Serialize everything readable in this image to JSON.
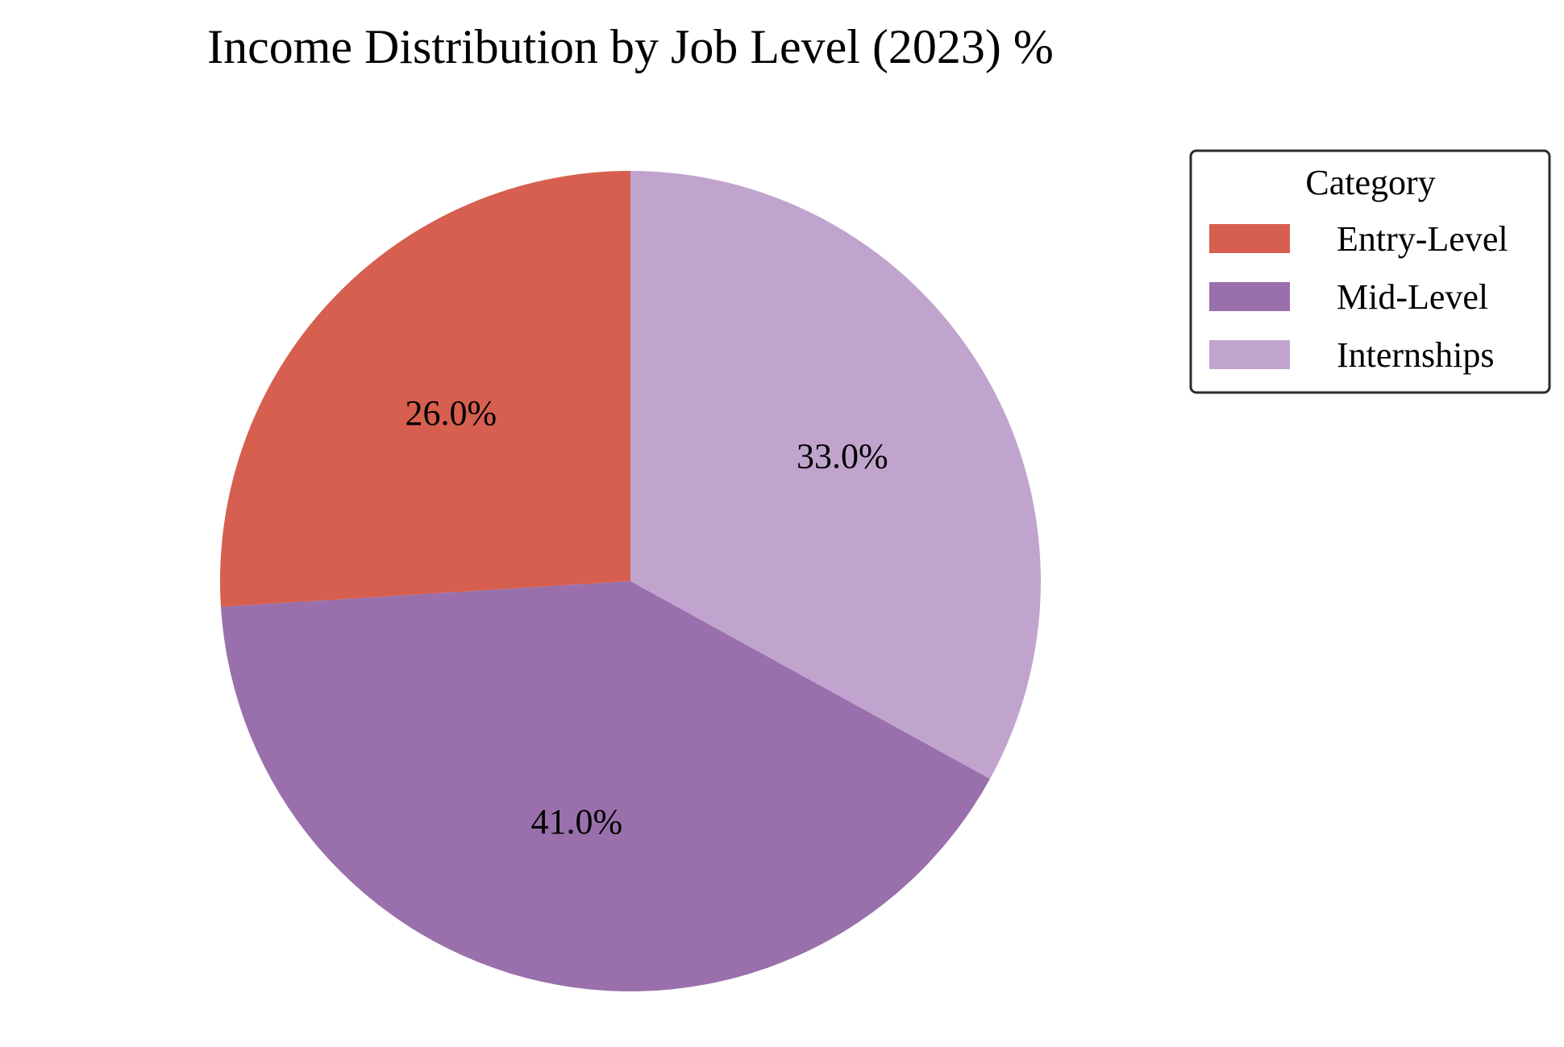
{
  "chart_data": {
    "type": "pie",
    "title": "Income Distribution by Job Level (2023) %",
    "legend": {
      "title": "Category",
      "placement": "top-right"
    },
    "slices": [
      {
        "name": "Entry-Level",
        "value": 26.0,
        "label": "26.0%",
        "color": "#d65f4f"
      },
      {
        "name": "Mid-Level",
        "value": 41.0,
        "label": "41.0%",
        "color": "#9970ac"
      },
      {
        "name": "Internships",
        "value": 33.0,
        "label": "33.0%",
        "color": "#c0a4ce"
      }
    ],
    "start_angle_deg": 90,
    "direction": "counterclockwise"
  }
}
